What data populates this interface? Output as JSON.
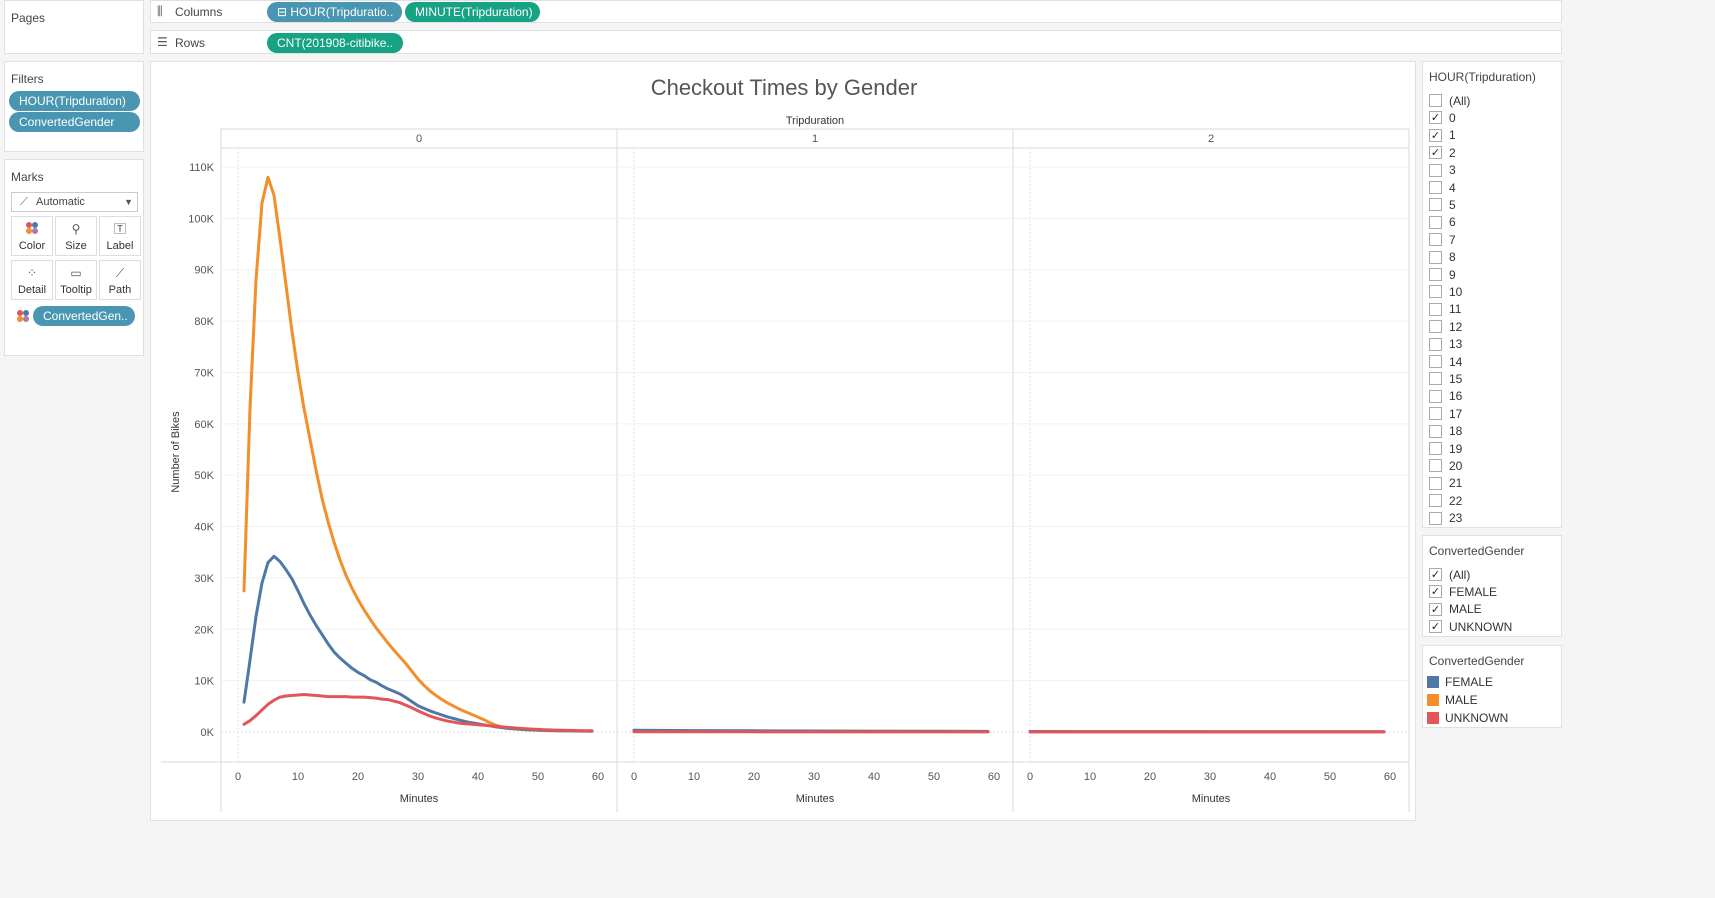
{
  "shelves": {
    "pages_label": "Pages",
    "columns_label": "Columns",
    "rows_label": "Rows",
    "columns_pills": [
      "⊟ HOUR(Tripduratio..",
      "MINUTE(Tripduration)"
    ],
    "rows_pills": [
      "CNT(201908-citibike.."
    ]
  },
  "filters": {
    "title": "Filters",
    "pills": [
      "HOUR(Tripduration)",
      "ConvertedGender"
    ]
  },
  "marks": {
    "title": "Marks",
    "type": "Automatic",
    "buttons": [
      "Color",
      "Size",
      "Label",
      "Detail",
      "Tooltip",
      "Path"
    ],
    "color_pill": "ConvertedGen.."
  },
  "hour_filter": {
    "title": "HOUR(Tripduration)",
    "items": [
      {
        "label": "(All)",
        "checked": false
      },
      {
        "label": "0",
        "checked": true
      },
      {
        "label": "1",
        "checked": true
      },
      {
        "label": "2",
        "checked": true
      },
      {
        "label": "3",
        "checked": false
      },
      {
        "label": "4",
        "checked": false
      },
      {
        "label": "5",
        "checked": false
      },
      {
        "label": "6",
        "checked": false
      },
      {
        "label": "7",
        "checked": false
      },
      {
        "label": "8",
        "checked": false
      },
      {
        "label": "9",
        "checked": false
      },
      {
        "label": "10",
        "checked": false
      },
      {
        "label": "11",
        "checked": false
      },
      {
        "label": "12",
        "checked": false
      },
      {
        "label": "13",
        "checked": false
      },
      {
        "label": "14",
        "checked": false
      },
      {
        "label": "15",
        "checked": false
      },
      {
        "label": "16",
        "checked": false
      },
      {
        "label": "17",
        "checked": false
      },
      {
        "label": "18",
        "checked": false
      },
      {
        "label": "19",
        "checked": false
      },
      {
        "label": "20",
        "checked": false
      },
      {
        "label": "21",
        "checked": false
      },
      {
        "label": "22",
        "checked": false
      },
      {
        "label": "23",
        "checked": false
      }
    ]
  },
  "gender_filter": {
    "title": "ConvertedGender",
    "items": [
      {
        "label": "(All)",
        "checked": true
      },
      {
        "label": "FEMALE",
        "checked": true
      },
      {
        "label": "MALE",
        "checked": true
      },
      {
        "label": "UNKNOWN",
        "checked": true
      }
    ]
  },
  "legend": {
    "title": "ConvertedGender",
    "items": [
      {
        "label": "FEMALE",
        "color": "#4e79a7"
      },
      {
        "label": "MALE",
        "color": "#f28e2b"
      },
      {
        "label": "UNKNOWN",
        "color": "#e15759"
      }
    ]
  },
  "chart_data": {
    "type": "line",
    "title": "Checkout Times by Gender",
    "column_header": "Tripduration",
    "panes": [
      "0",
      "1",
      "2"
    ],
    "xlabel": "Minutes",
    "ylabel": "Number of Bikes",
    "x_ticks": [
      0,
      10,
      20,
      30,
      40,
      50,
      60
    ],
    "y_ticks": [
      "0K",
      "10K",
      "20K",
      "30K",
      "40K",
      "50K",
      "60K",
      "70K",
      "80K",
      "90K",
      "100K",
      "110K"
    ],
    "ylim": [
      0,
      110000
    ],
    "xlim": [
      0,
      60
    ],
    "grid": true,
    "series": [
      {
        "name": "MALE",
        "color": "#f28e2b",
        "panes": [
          {
            "x": [
              1,
              2,
              3,
              4,
              5,
              6,
              7,
              8,
              9,
              10,
              11,
              12,
              13,
              14,
              15,
              16,
              17,
              18,
              19,
              20,
              21,
              22,
              23,
              24,
              25,
              26,
              27,
              28,
              29,
              30,
              31,
              32,
              33,
              34,
              35,
              36,
              37,
              38,
              39,
              40,
              41,
              42,
              43,
              44,
              45,
              46,
              47,
              48,
              49,
              50,
              51,
              52,
              53,
              54,
              55,
              56,
              57,
              58,
              59
            ],
            "y": [
              27500,
              63000,
              88000,
              103000,
              108000,
              104500,
              96000,
              87000,
              78000,
              70000,
              63000,
              57000,
              51000,
              45500,
              41000,
              37000,
              33500,
              30500,
              28000,
              25800,
              23800,
              22000,
              20300,
              18800,
              17300,
              15900,
              14600,
              13300,
              11800,
              10300,
              9100,
              8000,
              7100,
              6300,
              5600,
              5000,
              4400,
              3900,
              3400,
              2900,
              2400,
              1800,
              1300,
              1000,
              800,
              650,
              550,
              450,
              400,
              350,
              300,
              270,
              240,
              220,
              200,
              190,
              180,
              170,
              160
            ]
          },
          {
            "x": [
              0,
              10,
              20,
              30,
              40,
              50,
              59
            ],
            "y": [
              250,
              200,
              170,
              140,
              120,
              100,
              90
            ]
          },
          {
            "x": [
              0,
              10,
              20,
              30,
              40,
              50,
              59
            ],
            "y": [
              60,
              55,
              50,
              45,
              40,
              35,
              30
            ]
          }
        ]
      },
      {
        "name": "FEMALE",
        "color": "#4e79a7",
        "panes": [
          {
            "x": [
              1,
              2,
              3,
              4,
              5,
              6,
              7,
              8,
              9,
              10,
              11,
              12,
              13,
              14,
              15,
              16,
              17,
              18,
              19,
              20,
              21,
              22,
              23,
              24,
              25,
              26,
              27,
              28,
              29,
              30,
              31,
              32,
              33,
              34,
              35,
              36,
              37,
              38,
              39,
              40,
              41,
              42,
              43,
              44,
              45,
              46,
              47,
              48,
              49,
              50,
              51,
              52,
              53,
              54,
              55,
              56,
              57,
              58,
              59
            ],
            "y": [
              5800,
              14000,
              22500,
              29000,
              33000,
              34200,
              33200,
              31600,
              29800,
              27500,
              25000,
              22800,
              20800,
              19000,
              17200,
              15600,
              14400,
              13400,
              12400,
              11600,
              11000,
              10200,
              9700,
              9000,
              8400,
              7900,
              7400,
              6700,
              5900,
              5100,
              4600,
              4100,
              3700,
              3300,
              2900,
              2600,
              2300,
              2000,
              1800,
              1600,
              1400,
              1200,
              1000,
              850,
              700,
              600,
              520,
              460,
              410,
              370,
              330,
              300,
              270,
              250,
              230,
              210,
              200,
              190,
              180
            ]
          },
          {
            "x": [
              0,
              10,
              20,
              30,
              40,
              50,
              59
            ],
            "y": [
              350,
              280,
              230,
              190,
              160,
              140,
              120
            ]
          },
          {
            "x": [
              0,
              10,
              20,
              30,
              40,
              50,
              59
            ],
            "y": [
              90,
              80,
              70,
              60,
              55,
              50,
              45
            ]
          }
        ]
      },
      {
        "name": "UNKNOWN",
        "color": "#e15759",
        "panes": [
          {
            "x": [
              1,
              2,
              3,
              4,
              5,
              6,
              7,
              8,
              9,
              10,
              11,
              12,
              13,
              14,
              15,
              16,
              17,
              18,
              19,
              20,
              21,
              22,
              23,
              24,
              25,
              26,
              27,
              28,
              29,
              30,
              31,
              32,
              33,
              34,
              35,
              36,
              37,
              38,
              39,
              40,
              41,
              42,
              43,
              44,
              45,
              46,
              47,
              48,
              49,
              50,
              51,
              52,
              53,
              54,
              55,
              56,
              57,
              58,
              59
            ],
            "y": [
              1500,
              2200,
              3200,
              4300,
              5400,
              6200,
              6800,
              7000,
              7100,
              7200,
              7300,
              7200,
              7100,
              7000,
              6900,
              6900,
              6900,
              6900,
              6800,
              6800,
              6800,
              6700,
              6600,
              6400,
              6300,
              6000,
              5700,
              5200,
              4700,
              4100,
              3600,
              3100,
              2700,
              2400,
              2100,
              1900,
              1700,
              1600,
              1500,
              1400,
              1300,
              1200,
              1100,
              1000,
              900,
              800,
              700,
              620,
              560,
              500,
              440,
              400,
              370,
              340,
              320,
              300,
              280,
              260,
              250
            ]
          },
          {
            "x": [
              0,
              10,
              20,
              30,
              40,
              50,
              59
            ],
            "y": [
              40,
              35,
              30,
              25,
              22,
              20,
              18
            ]
          },
          {
            "x": [
              0,
              10,
              20,
              30,
              40,
              50,
              59
            ],
            "y": [
              10,
              10,
              10,
              10,
              10,
              10,
              10
            ]
          }
        ]
      }
    ]
  }
}
